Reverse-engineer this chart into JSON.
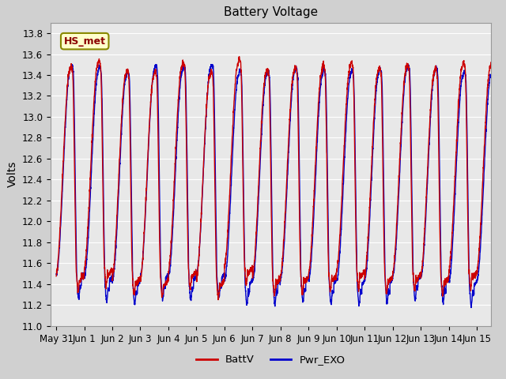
{
  "title": "Battery Voltage",
  "ylabel": "Volts",
  "ylim": [
    11.0,
    13.9
  ],
  "yticks": [
    11.0,
    11.2,
    11.4,
    11.6,
    11.8,
    12.0,
    12.2,
    12.4,
    12.6,
    12.8,
    13.0,
    13.2,
    13.4,
    13.6,
    13.8
  ],
  "tick_labels": [
    "May 31",
    "Jun 1",
    "Jun 2",
    "Jun 3",
    "Jun 4",
    "Jun 5",
    "Jun 6",
    "Jun 7",
    "Jun 8",
    "Jun 9",
    "Jun 10",
    "Jun 11",
    "Jun 12",
    "Jun 13",
    "Jun 14",
    "Jun 15"
  ],
  "tick_positions": [
    0,
    1,
    2,
    3,
    4,
    5,
    6,
    7,
    8,
    9,
    10,
    11,
    12,
    13,
    14,
    15
  ],
  "color_battv": "#cc0000",
  "color_pwr": "#0000cc",
  "legend_battv": "BattV",
  "legend_pwr": "Pwr_EXO",
  "annotation_text": "HS_met",
  "bg_color": "#e8e8e8",
  "fig_bg": "#d0d0d0",
  "grid_color": "#ffffff",
  "title_fontsize": 11,
  "label_fontsize": 10,
  "tick_fontsize": 8.5
}
